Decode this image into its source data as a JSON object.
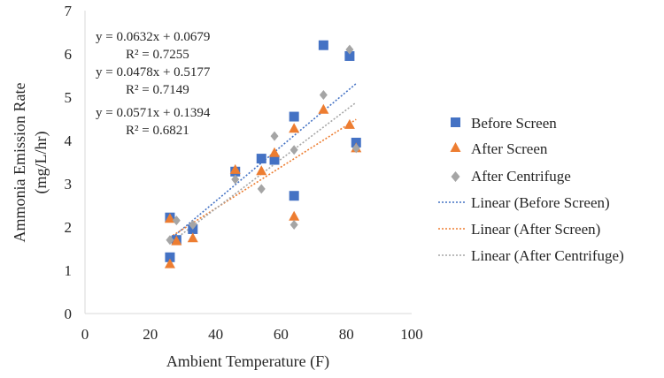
{
  "chart_data": {
    "type": "scatter",
    "title": "",
    "xlabel": "Ambient Temperature (F)",
    "ylabel": "Ammonia Emission Rate",
    "ylabel_unit": "(mg/L/hr)",
    "xlim": [
      0,
      100
    ],
    "ylim": [
      0,
      7
    ],
    "xticks": [
      "0",
      "20",
      "40",
      "60",
      "80",
      "100"
    ],
    "yticks": [
      "0",
      "1",
      "2",
      "3",
      "4",
      "5",
      "6",
      "7"
    ],
    "grid": false,
    "legend_position": "right",
    "series": [
      {
        "name": "Before Screen",
        "marker": "square",
        "color": "#4472C4",
        "points": [
          [
            26,
            2.22
          ],
          [
            26,
            1.3
          ],
          [
            28,
            1.7
          ],
          [
            33,
            1.95
          ],
          [
            46,
            3.28
          ],
          [
            54,
            3.58
          ],
          [
            58,
            3.55
          ],
          [
            64,
            4.55
          ],
          [
            64,
            2.72
          ],
          [
            73,
            6.2
          ],
          [
            81,
            5.95
          ],
          [
            83,
            3.95
          ]
        ],
        "trendline": {
          "label": "Linear (Before Screen)",
          "slope": 0.0632,
          "intercept": 0.0679,
          "equation": "y = 0.0632x + 0.0679",
          "r2": "R² = 0.7255"
        }
      },
      {
        "name": "After Screen",
        "marker": "triangle",
        "color": "#ED7D31",
        "points": [
          [
            26,
            2.2
          ],
          [
            26,
            1.15
          ],
          [
            28,
            1.68
          ],
          [
            33,
            1.75
          ],
          [
            46,
            3.33
          ],
          [
            54,
            3.3
          ],
          [
            58,
            3.72
          ],
          [
            64,
            4.28
          ],
          [
            64,
            2.25
          ],
          [
            73,
            4.72
          ],
          [
            81,
            4.37
          ],
          [
            83,
            3.83
          ]
        ],
        "trendline": {
          "label": "Linear (After Screen)",
          "slope": 0.0478,
          "intercept": 0.5177,
          "equation": "y = 0.0478x + 0.5177",
          "r2": "R² = 0.7149"
        }
      },
      {
        "name": "After Centrifuge",
        "marker": "diamond",
        "color": "#A5A5A5",
        "points": [
          [
            26,
            1.7
          ],
          [
            28,
            2.15
          ],
          [
            33,
            2.05
          ],
          [
            46,
            3.1
          ],
          [
            54,
            2.88
          ],
          [
            58,
            4.1
          ],
          [
            64,
            3.78
          ],
          [
            64,
            2.05
          ],
          [
            73,
            5.05
          ],
          [
            81,
            6.1
          ],
          [
            83,
            3.82
          ]
        ],
        "trendline": {
          "label": "Linear (After Centrifuge)",
          "slope": 0.0571,
          "intercept": 0.1394,
          "equation": "y = 0.0571x + 0.1394",
          "r2": "R² = 0.6821"
        }
      }
    ]
  }
}
